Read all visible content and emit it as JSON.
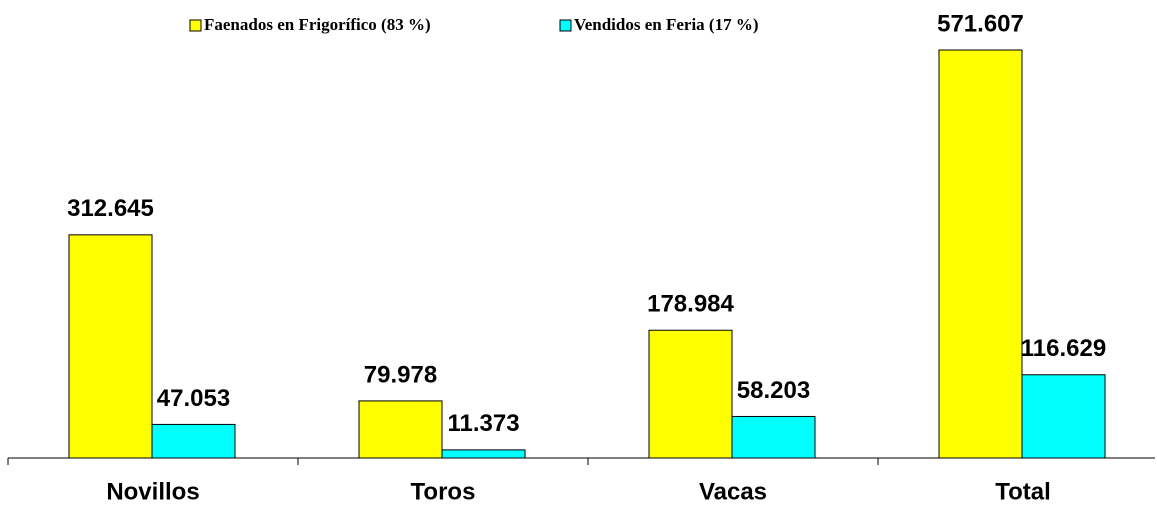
{
  "chart_data": {
    "type": "bar",
    "categories": [
      "Novillos",
      "Toros",
      "Vacas",
      "Total"
    ],
    "series": [
      {
        "name": "Faenados en Frigorífico (83 %)",
        "color": "#ffff00",
        "values": [
          312645,
          79978,
          178984,
          571607
        ],
        "value_labels": [
          "312.645",
          "79.978",
          "178.984",
          "571.607"
        ]
      },
      {
        "name": "Vendidos en Feria (17 %)",
        "color": "#00ffff",
        "values": [
          47053,
          11373,
          58203,
          116629
        ],
        "value_labels": [
          "47.053",
          "11.373",
          "58.203",
          "116.629"
        ]
      }
    ]
  }
}
